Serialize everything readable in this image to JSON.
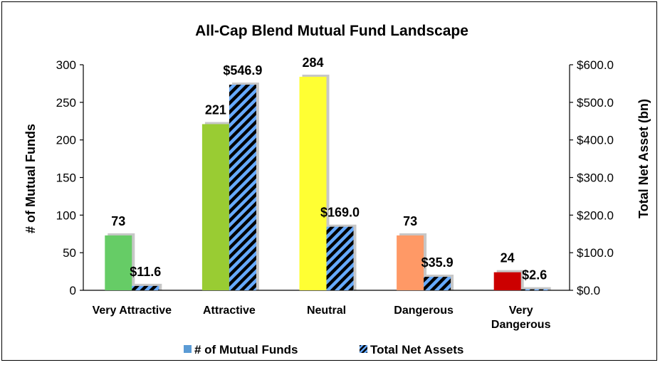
{
  "chart_data": {
    "type": "bar",
    "title": "All-Cap Blend Mutual Fund Landscape",
    "categories": [
      [
        "Very Attractive"
      ],
      [
        "Attractive"
      ],
      [
        "Neutral"
      ],
      [
        "Dangerous"
      ],
      [
        "Very",
        "Dangerous"
      ]
    ],
    "series": [
      {
        "name": "# of Mutual Funds",
        "axis": "left",
        "values": [
          73,
          221,
          284,
          73,
          24
        ],
        "labels": [
          "73",
          "221",
          "284",
          "73",
          "24"
        ],
        "colors": [
          "#66cc66",
          "#99cc33",
          "#ffff33",
          "#ff9966",
          "#cc0000"
        ],
        "legend_color": "#5b9bd5"
      },
      {
        "name": "Total Net Assets",
        "axis": "right",
        "values": [
          11.6,
          546.9,
          169.0,
          35.9,
          2.6
        ],
        "labels": [
          "$11.6",
          "$546.9",
          "$169.0",
          "$35.9",
          "$2.6"
        ],
        "pattern": "diagonal-stripes",
        "colors": [
          "#66aaff",
          "#000000"
        ]
      }
    ],
    "ylabel": "# of Mutual Funds",
    "ylim": [
      0,
      300
    ],
    "yticks": [
      0,
      50,
      100,
      150,
      200,
      250,
      300
    ],
    "ytick_labels": [
      "0",
      "50",
      "100",
      "150",
      "200",
      "250",
      "300"
    ],
    "y2label": "Total Net Asset (bn)",
    "y2lim": [
      0,
      600
    ],
    "y2ticks": [
      0,
      100,
      200,
      300,
      400,
      500,
      600
    ],
    "y2tick_labels": [
      "$0.0",
      "$100.0",
      "$200.0",
      "$300.0",
      "$400.0",
      "$500.0",
      "$600.0"
    ],
    "grid": false,
    "legend_position": "bottom"
  }
}
